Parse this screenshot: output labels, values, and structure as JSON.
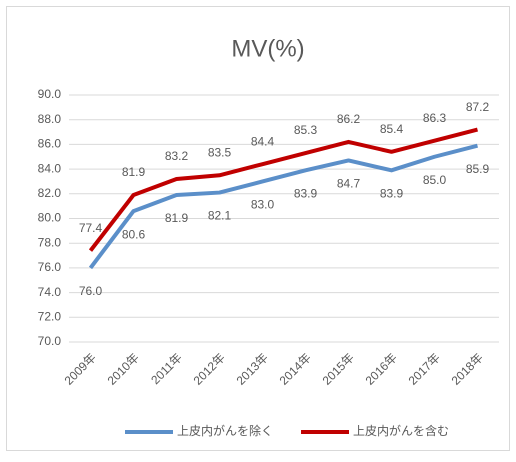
{
  "chart_data": {
    "type": "line",
    "title": "MV(%)",
    "categories": [
      "2009年",
      "2010年",
      "2011年",
      "2012年",
      "2013年",
      "2014年",
      "2015年",
      "2016年",
      "2017年",
      "2018年"
    ],
    "series": [
      {
        "name": "上皮内がんを除く",
        "color": "#5b8fc9",
        "values": [
          76.0,
          80.6,
          81.9,
          82.1,
          83.0,
          83.9,
          84.7,
          83.9,
          85.0,
          85.9
        ],
        "value_labels": [
          "76.0",
          "80.6",
          "81.9",
          "82.1",
          "83.0",
          "83.9",
          "84.7",
          "83.9",
          "85.0",
          "85.9"
        ]
      },
      {
        "name": "上皮内がんを含む",
        "color": "#c00000",
        "values": [
          77.4,
          81.9,
          83.2,
          83.5,
          84.4,
          85.3,
          86.2,
          85.4,
          86.3,
          87.2
        ],
        "value_labels": [
          "77.4",
          "81.9",
          "83.2",
          "83.5",
          "84.4",
          "85.3",
          "86.2",
          "85.4",
          "86.3",
          "87.2"
        ]
      }
    ],
    "ylim": [
      70,
      90
    ],
    "yticks": [
      {
        "value": 70,
        "label": "70.0"
      },
      {
        "value": 72,
        "label": "72.0"
      },
      {
        "value": 74,
        "label": "74.0"
      },
      {
        "value": 76,
        "label": "76.0"
      },
      {
        "value": 78,
        "label": "78.0"
      },
      {
        "value": 80,
        "label": "80.0"
      },
      {
        "value": 82,
        "label": "82.0"
      },
      {
        "value": 84,
        "label": "84.0"
      },
      {
        "value": 86,
        "label": "86.0"
      },
      {
        "value": 88,
        "label": "88.0"
      },
      {
        "value": 90,
        "label": "90.0"
      }
    ],
    "grid": true,
    "legend": "bottom"
  }
}
